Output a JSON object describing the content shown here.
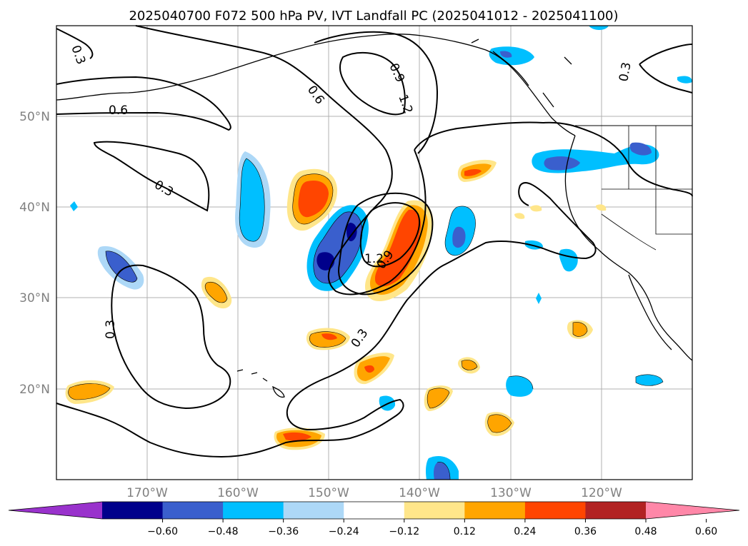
{
  "title": "2025040700 F072 500 hPa PV, IVT Landfall PC (2025041012 - 2025041100)",
  "map": {
    "lon_range": [
      180,
      110
    ],
    "lat_range": [
      10,
      60
    ],
    "lon_ticks": [
      "170°W",
      "160°W",
      "150°W",
      "140°W",
      "130°W",
      "120°W"
    ],
    "lat_ticks": [
      "50°N",
      "40°N",
      "30°N",
      "20°N"
    ],
    "gridlines": true
  },
  "contours": {
    "color": "#000000",
    "labels": [
      "0.3",
      "0.6",
      "0.6",
      "0.3",
      "0.9",
      "1.2",
      "0.3",
      "0.3",
      "1.2",
      "0.9",
      "0.3",
      "0.3"
    ]
  },
  "colorbar": {
    "ticks": [
      "−0.60",
      "−0.48",
      "−0.36",
      "−0.24",
      "−0.12",
      "0.12",
      "0.24",
      "0.36",
      "0.48",
      "0.60"
    ],
    "colors": [
      "#9932cc",
      "#00008b",
      "#3a5fcd",
      "#00bfff",
      "#add8f7",
      "#ffffff",
      "#ffe68a",
      "#ffa500",
      "#ff4500",
      "#b22222",
      "#ff87a8"
    ],
    "extend": "both"
  }
}
